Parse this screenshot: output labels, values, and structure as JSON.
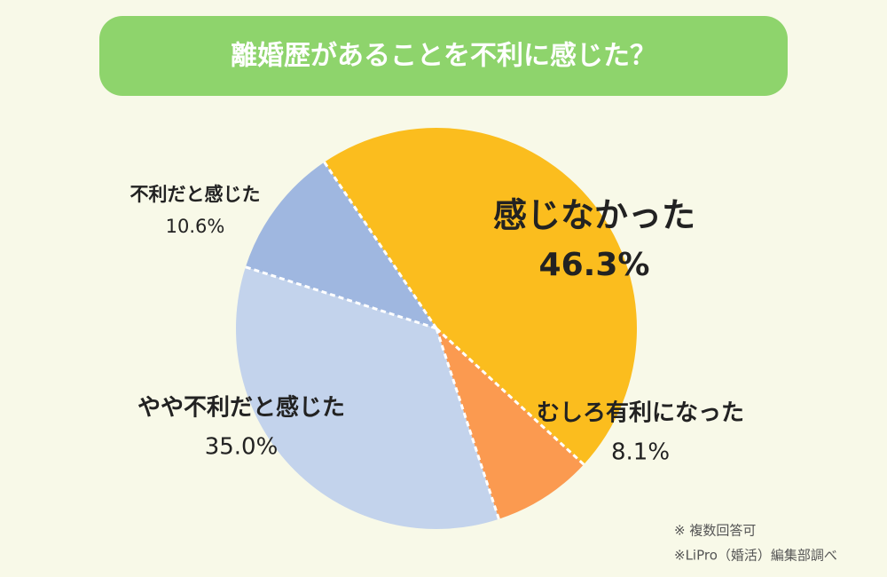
{
  "chart_data": {
    "type": "pie",
    "title": "離婚歴があることを不利に感じた？",
    "categories": [
      "感じなかった",
      "むしろ有利になった",
      "やや不利だと感じた",
      "不利だと感じた"
    ],
    "values": [
      46.3,
      8.1,
      35.0,
      10.6
    ],
    "value_labels": [
      "46.3%",
      "8.1%",
      "35.0%",
      "10.6%"
    ],
    "colors": [
      "#fbbd1e",
      "#fb9a50",
      "#c3d3ec",
      "#9fb7e0"
    ],
    "notes": [
      "※ 複数回答可",
      "※LiPro（婚活）編集部調べ"
    ]
  }
}
